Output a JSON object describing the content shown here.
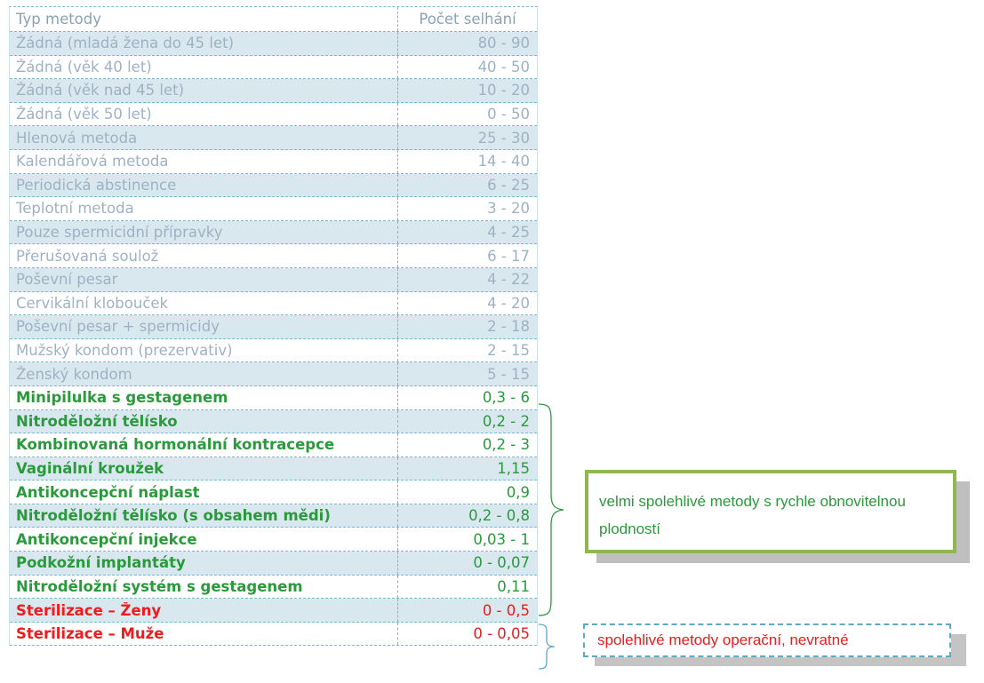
{
  "table": {
    "header": {
      "method": "Typ metody",
      "failures": "Počet selhání"
    },
    "rows": [
      {
        "name": "Žádná (mladá žena do 45 let)",
        "value": "80 - 90",
        "group": "grey"
      },
      {
        "name": "Žádná (věk 40 let)",
        "value": "40 - 50",
        "group": "grey"
      },
      {
        "name": "Žádná (věk nad 45 let)",
        "value": "10 - 20",
        "group": "grey"
      },
      {
        "name": "Žádná (věk 50 let)",
        "value": "0 - 50",
        "group": "grey"
      },
      {
        "name": "Hlenová metoda",
        "value": "25 - 30",
        "group": "grey"
      },
      {
        "name": "Kalendářová metoda",
        "value": "14 - 40",
        "group": "grey"
      },
      {
        "name": "Periodická abstinence",
        "value": "6 - 25",
        "group": "grey"
      },
      {
        "name": "Teplotní metoda",
        "value": "3 - 20",
        "group": "grey"
      },
      {
        "name": "Pouze spermicidní přípravky",
        "value": "4 - 25",
        "group": "grey"
      },
      {
        "name": "Přerušovaná soulož",
        "value": "6 - 17",
        "group": "grey"
      },
      {
        "name": "Poševní pesar",
        "value": "4 - 22",
        "group": "grey"
      },
      {
        "name": "Cervikální klobouček",
        "value": "4 - 20",
        "group": "grey"
      },
      {
        "name": "Poševní pesar + spermicidy",
        "value": "2 - 18",
        "group": "grey"
      },
      {
        "name": "Mužský kondom (prezervativ)",
        "value": "2 - 15",
        "group": "grey"
      },
      {
        "name": "Ženský kondom",
        "value": "5 - 15",
        "group": "grey"
      },
      {
        "name": "Minipilulka s gestagenem",
        "value": "0,3 - 6",
        "group": "green"
      },
      {
        "name": "Nitroděložní tělísko",
        "value": "0,2 - 2",
        "group": "green"
      },
      {
        "name": "Kombinovaná hormonální kontracepce",
        "value": "0,2 - 3",
        "group": "green"
      },
      {
        "name": "Vaginální kroužek",
        "value": "1,15",
        "group": "green"
      },
      {
        "name": "Antikoncepční náplast",
        "value": "0,9",
        "group": "green"
      },
      {
        "name": "Nitroděložní tělísko (s obsahem mědi)",
        "value": "0,2 - 0,8",
        "group": "green"
      },
      {
        "name": "Antikoncepční injekce",
        "value": "0,03 - 1",
        "group": "green"
      },
      {
        "name": "Podkožní implantáty",
        "value": "0 - 0,07",
        "group": "green"
      },
      {
        "name": "Nitroděložní systém s gestagenem",
        "value": "0,11",
        "group": "green"
      },
      {
        "name": "Sterilizace – Ženy",
        "value": "0 - 0,5",
        "group": "red"
      },
      {
        "name": "Sterilizace – Muže",
        "value": "0 - 0,05",
        "group": "red"
      }
    ]
  },
  "callouts": {
    "green": "velmi spolehlivé metody s rychle obnovitelnou plodností",
    "blue": "spolehlivé metody operační, nevratné"
  },
  "colors": {
    "grey_text": "#9fb2c4",
    "green_text": "#2a9a3c",
    "red_text": "#ee1c1c",
    "row_shade": "#d9e8ef",
    "green_box_border": "#8fb84f",
    "blue_box_border": "#5fa8c4"
  },
  "icons": {
    "green_brace": "curly-brace-right",
    "blue_brace": "curly-brace-right"
  }
}
